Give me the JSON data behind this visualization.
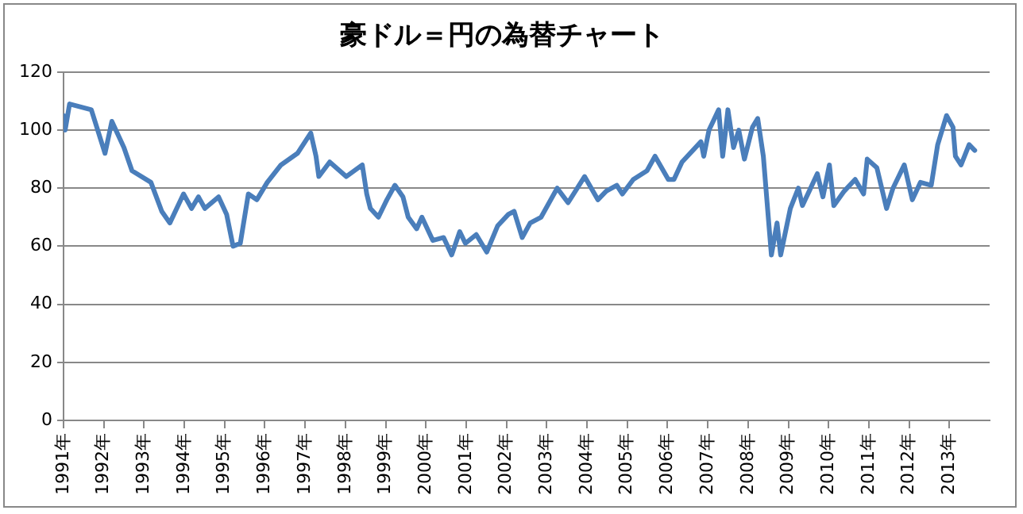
{
  "chart_data": {
    "type": "line",
    "title": "豪ドル＝円の為替チャート",
    "xlim": [
      1991,
      2014
    ],
    "xticks": [
      {
        "value": 1991,
        "label": "1991年"
      },
      {
        "value": 1992,
        "label": "1992年"
      },
      {
        "value": 1993,
        "label": "1993年"
      },
      {
        "value": 1994,
        "label": "1994年"
      },
      {
        "value": 1995,
        "label": "1995年"
      },
      {
        "value": 1996,
        "label": "1996年"
      },
      {
        "value": 1997,
        "label": "1997年"
      },
      {
        "value": 1998,
        "label": "1998年"
      },
      {
        "value": 1999,
        "label": "1999年"
      },
      {
        "value": 2000,
        "label": "2000年"
      },
      {
        "value": 2001,
        "label": "2001年"
      },
      {
        "value": 2002,
        "label": "2002年"
      },
      {
        "value": 2003,
        "label": "2003年"
      },
      {
        "value": 2004,
        "label": "2004年"
      },
      {
        "value": 2005,
        "label": "2005年"
      },
      {
        "value": 2006,
        "label": "2006年"
      },
      {
        "value": 2007,
        "label": "2007年"
      },
      {
        "value": 2008,
        "label": "2008年"
      },
      {
        "value": 2009,
        "label": "2009年"
      },
      {
        "value": 2010,
        "label": "2010年"
      },
      {
        "value": 2011,
        "label": "2011年"
      },
      {
        "value": 2012,
        "label": "2012年"
      },
      {
        "value": 2013,
        "label": "2013年"
      }
    ],
    "ylim": [
      0,
      120
    ],
    "yticks": [
      0,
      20,
      40,
      60,
      80,
      100,
      120
    ],
    "grid": "y",
    "legend": false,
    "marker": "none",
    "line_style": "solid",
    "series": [
      {
        "color": "#4a7ebb",
        "x": [
          1991.0,
          1991.04,
          1991.15,
          1991.69,
          1992.03,
          1992.2,
          1992.5,
          1992.7,
          1993.17,
          1993.44,
          1993.64,
          1993.98,
          1994.18,
          1994.35,
          1994.51,
          1994.85,
          1995.05,
          1995.21,
          1995.39,
          1995.59,
          1995.8,
          1996.06,
          1996.4,
          1996.81,
          1997.14,
          1997.27,
          1997.34,
          1997.61,
          1998.02,
          1998.42,
          1998.53,
          1998.62,
          1998.82,
          1999.03,
          1999.23,
          1999.43,
          1999.56,
          1999.77,
          1999.9,
          2000.17,
          2000.44,
          2000.64,
          2000.84,
          2000.98,
          2001.25,
          2001.51,
          2001.78,
          2002.05,
          2002.19,
          2002.39,
          2002.59,
          2002.86,
          2003.26,
          2003.53,
          2003.94,
          2004.27,
          2004.48,
          2004.74,
          2004.88,
          2005.15,
          2005.49,
          2005.69,
          2006.02,
          2006.16,
          2006.36,
          2006.83,
          2006.9,
          2007.03,
          2007.27,
          2007.37,
          2007.5,
          2007.64,
          2007.77,
          2007.91,
          2008.11,
          2008.24,
          2008.38,
          2008.52,
          2008.58,
          2008.72,
          2008.81,
          2009.05,
          2009.25,
          2009.35,
          2009.52,
          2009.72,
          2009.86,
          2010.02,
          2010.13,
          2010.39,
          2010.66,
          2010.87,
          2010.96,
          2011.2,
          2011.44,
          2011.6,
          2011.88,
          2012.08,
          2012.28,
          2012.55,
          2012.71,
          2012.93,
          2013.09,
          2013.15,
          2013.29,
          2013.49,
          2013.63
        ],
        "values": [
          105,
          100,
          109,
          107,
          92,
          103,
          94,
          86,
          82,
          72,
          68,
          78,
          73,
          77,
          73,
          77,
          71,
          60,
          61,
          78,
          76,
          82,
          88,
          92,
          99,
          91,
          84,
          89,
          84,
          88,
          78,
          73,
          70,
          76,
          81,
          77,
          70,
          66,
          70,
          62,
          63,
          57,
          65,
          61,
          64,
          58,
          67,
          71,
          72,
          63,
          68,
          70,
          80,
          75,
          84,
          76,
          79,
          81,
          78,
          83,
          86,
          91,
          83,
          83,
          89,
          96,
          91,
          100,
          107,
          91,
          107,
          94,
          100,
          90,
          101,
          104,
          91,
          67,
          57,
          68,
          57,
          73,
          80,
          74,
          79,
          85,
          77,
          88,
          74,
          79,
          83,
          78,
          90,
          87,
          73,
          80,
          88,
          76,
          82,
          81,
          95,
          105,
          101,
          91,
          88,
          95,
          93
        ]
      }
    ]
  }
}
